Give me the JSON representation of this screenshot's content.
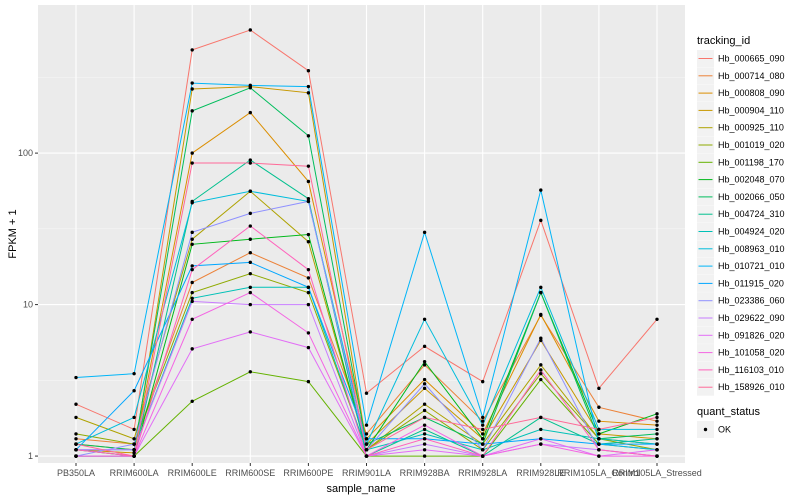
{
  "chart_data": {
    "type": "line",
    "xlabel": "sample_name",
    "ylabel": "FPKM + 1",
    "y_scale": "log10",
    "ylim": [
      0.9,
      950
    ],
    "y_ticks": [
      1,
      10,
      100
    ],
    "y_tick_labels": [
      "1",
      "10",
      "100"
    ],
    "categories": [
      "PB350LA",
      "RRIM600LA",
      "RRIM600LE",
      "RRIM600SE",
      "RRIM600PE",
      "RRIM901LA",
      "RRIM928BA",
      "RRIM928LA",
      "RRIM928LE",
      "RRIM105LA_Control",
      "RRIM105LA_Stressed"
    ],
    "legend_title": "tracking_id",
    "legend2": {
      "title": "quant_status",
      "items": [
        "OK"
      ]
    },
    "grid": true,
    "background": "#ebebeb",
    "series": [
      {
        "name": "Hb_000665_090",
        "color": "#F8766D",
        "values": [
          2.2,
          1.5,
          480,
          650,
          350,
          2.6,
          5.3,
          3.1,
          36,
          2.8,
          8.0
        ]
      },
      {
        "name": "Hb_000714_080",
        "color": "#EC8239",
        "values": [
          1.3,
          1.2,
          14,
          22,
          15,
          1.4,
          4.0,
          1.7,
          8.5,
          2.1,
          1.7
        ]
      },
      {
        "name": "Hb_000808_090",
        "color": "#DB8E00",
        "values": [
          1.2,
          1.1,
          100,
          185,
          65,
          1.3,
          3.2,
          1.4,
          8.6,
          1.7,
          1.6
        ]
      },
      {
        "name": "Hb_000904_110",
        "color": "#C79800",
        "values": [
          1.1,
          1.05,
          265,
          275,
          250,
          1.2,
          2.8,
          1.3,
          5.8,
          1.4,
          1.3
        ]
      },
      {
        "name": "Hb_000925_110",
        "color": "#AEA200",
        "values": [
          1.8,
          1.3,
          27,
          56,
          26,
          1.1,
          2.2,
          1.2,
          4.0,
          1.3,
          1.2
        ]
      },
      {
        "name": "Hb_001019_020",
        "color": "#8FAA00",
        "values": [
          1.4,
          1.2,
          12,
          16,
          12,
          1.1,
          2.0,
          1.1,
          3.5,
          1.3,
          1.1
        ]
      },
      {
        "name": "Hb_001198_170",
        "color": "#64B200",
        "values": [
          1.0,
          1.0,
          2.3,
          3.6,
          3.1,
          1.0,
          1.0,
          1.0,
          3.2,
          1.2,
          1.1
        ]
      },
      {
        "name": "Hb_002048_070",
        "color": "#00B81B",
        "values": [
          1.1,
          1.0,
          25,
          27,
          29,
          1.1,
          4.2,
          1.3,
          12,
          1.4,
          1.9
        ]
      },
      {
        "name": "Hb_002066_050",
        "color": "#00BD5C",
        "values": [
          1.2,
          1.1,
          190,
          270,
          130,
          1.2,
          1.8,
          1.2,
          12,
          1.3,
          1.4
        ]
      },
      {
        "name": "Hb_004724_310",
        "color": "#00C08E",
        "values": [
          1.0,
          1.0,
          48,
          90,
          50,
          1.0,
          1.5,
          1.0,
          1.8,
          1.2,
          1.3
        ]
      },
      {
        "name": "Hb_004924_020",
        "color": "#00C1B7",
        "values": [
          1.1,
          1.1,
          11,
          13,
          13,
          1.1,
          1.4,
          1.1,
          1.5,
          1.3,
          1.2
        ]
      },
      {
        "name": "Hb_008963_010",
        "color": "#00BDDC",
        "values": [
          1.2,
          1.8,
          47,
          56,
          48,
          1.2,
          8.0,
          1.6,
          13,
          1.5,
          1.5
        ]
      },
      {
        "name": "Hb_010721_010",
        "color": "#00B5F8",
        "values": [
          3.3,
          3.5,
          290,
          280,
          275,
          1.6,
          30,
          1.8,
          57,
          1.2,
          1.1
        ]
      },
      {
        "name": "Hb_011915_020",
        "color": "#00A6FF",
        "values": [
          1.1,
          2.7,
          18,
          19,
          13,
          1.3,
          1.3,
          1.2,
          1.3,
          1.2,
          1.2
        ]
      },
      {
        "name": "Hb_023386_060",
        "color": "#8F91FF",
        "values": [
          1.0,
          1.2,
          30,
          40,
          48,
          1.1,
          3.0,
          1.1,
          6.0,
          1.1,
          1.0
        ]
      },
      {
        "name": "Hb_029622_090",
        "color": "#C77CFF",
        "values": [
          1.1,
          1.1,
          10.5,
          10,
          10,
          1.0,
          1.2,
          1.0,
          1.2,
          1.1,
          1.0
        ]
      },
      {
        "name": "Hb_091826_020",
        "color": "#E26EF6",
        "values": [
          1.0,
          1.0,
          5.1,
          6.6,
          5.2,
          1.0,
          1.1,
          1.0,
          1.3,
          1.0,
          1.1
        ]
      },
      {
        "name": "Hb_101058_020",
        "color": "#F465E3",
        "values": [
          1.0,
          1.0,
          8.0,
          12,
          6.5,
          1.0,
          1.6,
          1.0,
          1.2,
          1.0,
          1.0
        ]
      },
      {
        "name": "Hb_116103_010",
        "color": "#FF62BC",
        "values": [
          1.1,
          1.0,
          17,
          33,
          17,
          1.0,
          1.3,
          1.0,
          3.7,
          1.1,
          1.0
        ]
      },
      {
        "name": "Hb_158926_010",
        "color": "#FF6A98",
        "values": [
          1.2,
          1.0,
          86,
          86,
          82,
          1.1,
          1.8,
          1.5,
          1.8,
          1.5,
          1.8
        ]
      }
    ]
  }
}
